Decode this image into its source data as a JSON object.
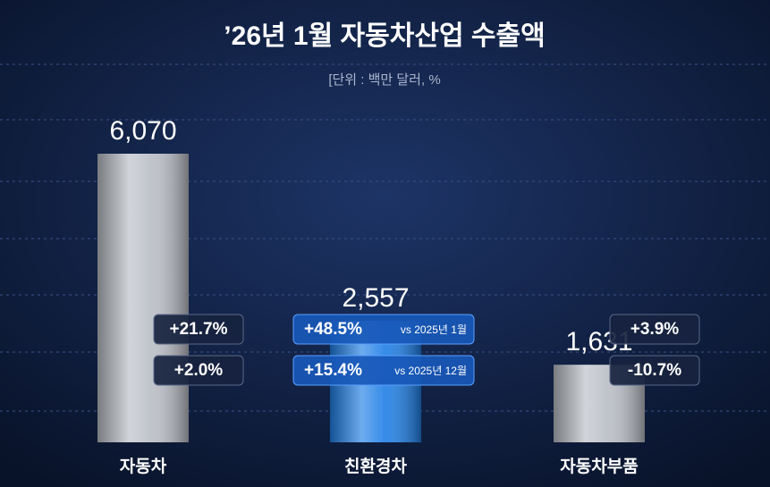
{
  "chart_data": {
    "type": "bar",
    "title": "’26년 1월 자동차산업 수출액",
    "subtitle": "[단위 : 백만 달러, %",
    "categories": [
      "자동차",
      "친환경차",
      "자동차부품"
    ],
    "values": [
      6070,
      2557,
      1631
    ],
    "value_labels": [
      "6,070",
      "2,557",
      "1,631"
    ],
    "colors": [
      "#b9bdc5",
      "#1f7fe6",
      "#b9bdc5"
    ],
    "changes": [
      {
        "name": "vs 2025년 1월",
        "values": [
          21.7,
          48.5,
          3.9
        ],
        "value_labels": [
          "+21.7%",
          "+48.5%",
          "+3.9%"
        ]
      },
      {
        "name": "vs 2025년 12월",
        "values": [
          2.0,
          15.4,
          -10.7
        ],
        "value_labels": [
          "+2.0%",
          "+15.4%",
          "-10.7%"
        ]
      }
    ]
  }
}
